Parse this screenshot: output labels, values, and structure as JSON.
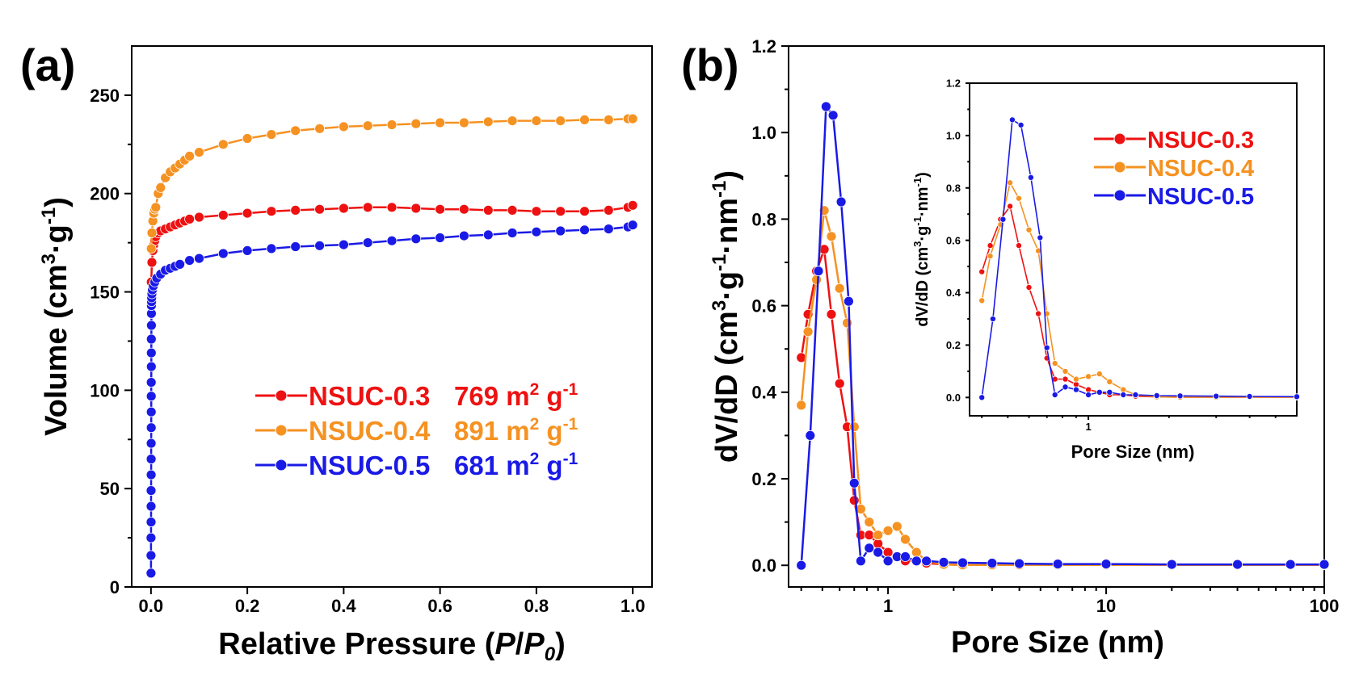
{
  "chart_data": [
    {
      "panel": "(a)",
      "type": "scatter",
      "xlabel_main": "Relative Pressure (",
      "xlabel_italic_p": "P",
      "xlabel_slash": "/",
      "xlabel_italic_p0": "P",
      "xlabel_sub_0": "0",
      "xlabel_close": ")",
      "ylabel_main": "Volume (cm",
      "ylabel_sup_3": "3",
      "ylabel_mid": "·g",
      "ylabel_sup_neg1": "-1",
      "ylabel_close": ")",
      "xlim": [
        -0.04,
        1.04
      ],
      "ylim": [
        0,
        275
      ],
      "xticks": [
        0.0,
        0.2,
        0.4,
        0.6,
        0.8,
        1.0
      ],
      "xtick_labels": [
        "0.0",
        "0.2",
        "0.4",
        "0.6",
        "0.8",
        "1.0"
      ],
      "yticks": [
        0,
        50,
        100,
        150,
        200,
        250
      ],
      "ytick_labels": [
        "0",
        "50",
        "100",
        "150",
        "200",
        "250"
      ],
      "legend": [
        {
          "name": "NSUC-0.3",
          "area": "769 m",
          "sup": "2",
          "unit2": " g",
          "unit2_sup": "-1",
          "color": "#ee1111"
        },
        {
          "name": "NSUC-0.4",
          "area": "891 m",
          "sup": "2",
          "unit2": " g",
          "unit2_sup": "-1",
          "color": "#f59222"
        },
        {
          "name": "NSUC-0.5",
          "area": "681 m",
          "sup": "2",
          "unit2": " g",
          "unit2_sup": "-1",
          "color": "#1a1ae6"
        }
      ],
      "series": [
        {
          "name": "NSUC-0.3",
          "color": "#ee1111",
          "x": [
            0.0005,
            0.002,
            0.004,
            0.006,
            0.008,
            0.01,
            0.015,
            0.02,
            0.03,
            0.04,
            0.05,
            0.06,
            0.07,
            0.08,
            0.1,
            0.15,
            0.2,
            0.25,
            0.3,
            0.35,
            0.4,
            0.45,
            0.5,
            0.55,
            0.6,
            0.65,
            0.7,
            0.75,
            0.8,
            0.85,
            0.9,
            0.95,
            0.99,
            1.0
          ],
          "y": [
            155,
            165,
            171,
            174,
            176,
            178,
            180,
            181,
            182,
            183,
            184,
            185,
            186,
            187,
            188,
            189,
            190,
            191,
            191.5,
            192,
            192.5,
            193,
            193,
            192.5,
            192,
            192,
            191.5,
            191.5,
            191,
            191,
            191,
            191.5,
            193,
            194
          ]
        },
        {
          "name": "NSUC-0.4",
          "color": "#f59222",
          "x": [
            0.0005,
            0.002,
            0.004,
            0.006,
            0.008,
            0.01,
            0.015,
            0.02,
            0.03,
            0.04,
            0.05,
            0.06,
            0.07,
            0.08,
            0.1,
            0.15,
            0.2,
            0.25,
            0.3,
            0.35,
            0.4,
            0.45,
            0.5,
            0.55,
            0.6,
            0.65,
            0.7,
            0.75,
            0.8,
            0.85,
            0.9,
            0.95,
            0.99,
            1.0
          ],
          "y": [
            172,
            180,
            186,
            190,
            192,
            193,
            200,
            203,
            208,
            211,
            213,
            215,
            217,
            219,
            221,
            225,
            228,
            230,
            232,
            233,
            234,
            234.5,
            235,
            235.5,
            236,
            236,
            236.5,
            237,
            237,
            237,
            237.5,
            237.5,
            238,
            238
          ]
        },
        {
          "name": "NSUC-0.5",
          "color": "#1a1ae6",
          "x": [
            5e-05,
            0.0001,
            0.00015,
            0.0002,
            0.00025,
            0.0003,
            0.00035,
            0.0004,
            0.00045,
            0.0005,
            0.00055,
            0.0006,
            0.00065,
            0.0007,
            0.00075,
            0.0008,
            0.00085,
            0.0009,
            0.001,
            0.0012,
            0.0015,
            0.002,
            0.003,
            0.005,
            0.008,
            0.012,
            0.02,
            0.03,
            0.04,
            0.05,
            0.06,
            0.08,
            0.1,
            0.15,
            0.2,
            0.25,
            0.3,
            0.35,
            0.4,
            0.45,
            0.5,
            0.55,
            0.6,
            0.65,
            0.7,
            0.75,
            0.8,
            0.85,
            0.9,
            0.95,
            0.99,
            1.0
          ],
          "y": [
            7,
            16,
            25,
            33,
            41,
            49,
            57,
            65,
            73,
            81,
            89,
            97,
            104,
            112,
            119,
            126,
            133,
            139,
            143,
            145,
            147,
            149,
            151,
            153,
            155,
            157,
            159,
            161,
            162,
            163,
            164,
            166,
            167,
            169.5,
            171,
            172,
            173,
            173.5,
            174,
            175,
            176,
            177,
            177.5,
            178.5,
            179,
            180,
            180.5,
            181,
            181.5,
            182,
            183,
            184
          ]
        }
      ]
    },
    {
      "panel": "(b)",
      "type": "line",
      "xscale": "log",
      "xlabel": "Pore Size (nm)",
      "ylabel_main": "dV/dD (cm",
      "ylabel_sup_3": "3",
      "ylabel_mid1": "·g",
      "ylabel_sup_neg1a": "-1",
      "ylabel_mid2": "·nm",
      "ylabel_sup_neg1b": "-1",
      "ylabel_close": ")",
      "xlim": [
        0.35,
        100
      ],
      "ylim": [
        -0.05,
        1.2
      ],
      "xticks": [
        1,
        10,
        100
      ],
      "xtick_labels": [
        "1",
        "10",
        "100"
      ],
      "yticks": [
        0.0,
        0.2,
        0.4,
        0.6,
        0.8,
        1.0,
        1.2
      ],
      "ytick_labels": [
        "0.0",
        "0.2",
        "0.4",
        "0.6",
        "0.8",
        "1.0",
        "1.2"
      ],
      "series": [
        {
          "name": "NSUC-0.3",
          "color": "#ee1111",
          "x": [
            0.4,
            0.43,
            0.47,
            0.51,
            0.55,
            0.6,
            0.65,
            0.7,
            0.75,
            0.82,
            0.9,
            1.0,
            1.1,
            1.2,
            1.35,
            1.5,
            1.8,
            2.2,
            3,
            4,
            6,
            10,
            20,
            40,
            70,
            100
          ],
          "y": [
            0.48,
            0.58,
            0.68,
            0.73,
            0.58,
            0.42,
            0.32,
            0.15,
            0.07,
            0.07,
            0.05,
            0.03,
            0.02,
            0.01,
            0.01,
            0.005,
            0.002,
            0.001,
            0.001,
            0.001,
            0.001,
            0.001,
            0.001,
            0.001,
            0.001,
            0.001
          ]
        },
        {
          "name": "NSUC-0.4",
          "color": "#f59222",
          "x": [
            0.4,
            0.43,
            0.47,
            0.51,
            0.55,
            0.6,
            0.65,
            0.7,
            0.75,
            0.82,
            0.9,
            1.0,
            1.1,
            1.2,
            1.35,
            1.5,
            1.8,
            2.2,
            3,
            4,
            6,
            10,
            20,
            40,
            70,
            100
          ],
          "y": [
            0.37,
            0.54,
            0.66,
            0.82,
            0.76,
            0.64,
            0.56,
            0.32,
            0.13,
            0.1,
            0.07,
            0.08,
            0.09,
            0.06,
            0.03,
            0.01,
            0.002,
            0.001,
            0.001,
            0.001,
            0.001,
            0.001,
            0.001,
            0.001,
            0.001,
            0.001
          ]
        },
        {
          "name": "NSUC-0.5",
          "color": "#1a1ae6",
          "x": [
            0.4,
            0.44,
            0.48,
            0.52,
            0.56,
            0.61,
            0.66,
            0.7,
            0.75,
            0.82,
            0.9,
            1.0,
            1.1,
            1.2,
            1.35,
            1.5,
            1.8,
            2.2,
            3,
            4,
            6,
            10,
            20,
            40,
            70,
            100
          ],
          "y": [
            0.0,
            0.3,
            0.68,
            1.06,
            1.04,
            0.84,
            0.61,
            0.19,
            0.01,
            0.04,
            0.03,
            0.01,
            0.02,
            0.02,
            0.01,
            0.01,
            0.007,
            0.006,
            0.005,
            0.004,
            0.003,
            0.003,
            0.002,
            0.002,
            0.002,
            0.002
          ]
        }
      ],
      "inset": {
        "xlabel": "Pore Size (nm)",
        "ylabel_main": "dV/dD (cm",
        "ylabel_sup_3": "3",
        "ylabel_mid1": "·g",
        "ylabel_sup_neg1a": "-1",
        "ylabel_mid2": "·nm",
        "ylabel_sup_neg1b": "-1",
        "ylabel_close": ")",
        "xscale": "log",
        "xlim": [
          0.36,
          6
        ],
        "ylim": [
          -0.07,
          1.2
        ],
        "xticks": [
          1
        ],
        "xtick_labels": [
          "1"
        ],
        "yticks": [
          0.0,
          0.2,
          0.4,
          0.6,
          0.8,
          1.0,
          1.2
        ],
        "ytick_labels": [
          "0.0",
          "0.2",
          "0.4",
          "0.6",
          "0.8",
          "1.0",
          "1.2"
        ],
        "legend": [
          {
            "name": "NSUC-0.3",
            "color": "#ee1111"
          },
          {
            "name": "NSUC-0.4",
            "color": "#f59222"
          },
          {
            "name": "NSUC-0.5",
            "color": "#1a1ae6"
          }
        ]
      }
    }
  ]
}
